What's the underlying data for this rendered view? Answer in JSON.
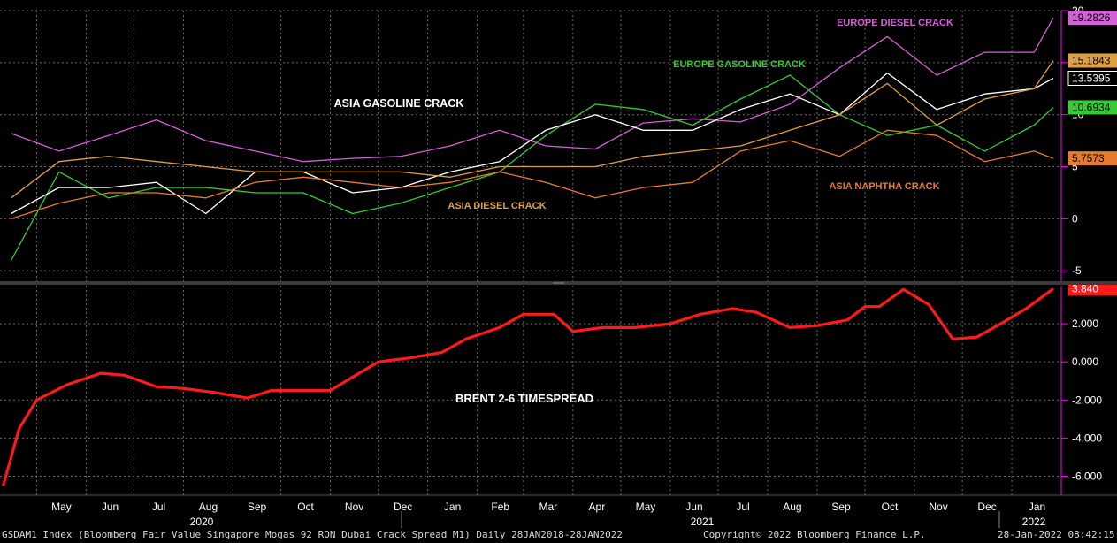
{
  "chart_data": [
    {
      "type": "line",
      "panel": "upper",
      "ylim": [
        -6,
        20
      ],
      "yticks": [
        -5,
        0,
        5,
        10,
        15,
        20
      ],
      "series": [
        {
          "name": "EUROPE DIESEL CRACK",
          "color": "#d45fd6",
          "last": "19.2826",
          "x": [
            "2019-04-15",
            "2019-05-15",
            "2019-06-15",
            "2019-07-15",
            "2019-08-15",
            "2019-09-15",
            "2019-10-15",
            "2019-11-15",
            "2019-12-15",
            "2020-01-15",
            "2020-02-15",
            "2020-03-15",
            "2020-04-15",
            "2020-05-15",
            "2020-06-15",
            "2020-07-15",
            "2020-08-15",
            "2020-09-15",
            "2020-10-15",
            "2020-11-15",
            "2020-12-15",
            "2021-01-15",
            "2021-01-27"
          ],
          "values": [
            8.2,
            6.5,
            8.0,
            9.5,
            7.5,
            6.5,
            5.5,
            5.8,
            6.0,
            7.0,
            8.5,
            7.0,
            6.7,
            9.2,
            9.6,
            9.3,
            11.0,
            14.5,
            17.5,
            13.8,
            16.0,
            16.0,
            19.3
          ]
        },
        {
          "name": "EUROPE GASOLINE CRACK",
          "color": "#33cc33",
          "last": "10.6934",
          "x": [
            "2019-04-15",
            "2019-05-15",
            "2019-06-15",
            "2019-07-15",
            "2019-08-15",
            "2019-09-15",
            "2019-10-15",
            "2019-11-15",
            "2019-12-15",
            "2020-01-15",
            "2020-02-15",
            "2020-03-15",
            "2020-04-15",
            "2020-05-15",
            "2020-06-15",
            "2020-07-15",
            "2020-08-15",
            "2020-09-15",
            "2020-10-15",
            "2020-11-15",
            "2020-12-15",
            "2021-01-15",
            "2021-01-27"
          ],
          "values": [
            -4.0,
            4.5,
            2.0,
            3.0,
            3.0,
            2.5,
            2.5,
            0.5,
            1.5,
            3.0,
            4.5,
            8.0,
            11.0,
            10.5,
            9.0,
            11.5,
            13.8,
            10.0,
            8.0,
            9.0,
            6.5,
            9.0,
            10.7
          ]
        },
        {
          "name": "ASIA GASOLINE CRACK",
          "color": "#ffffff",
          "last": "13.5395",
          "x": [
            "2019-04-15",
            "2019-05-15",
            "2019-06-15",
            "2019-07-15",
            "2019-08-15",
            "2019-09-15",
            "2019-10-15",
            "2019-11-15",
            "2019-12-15",
            "2020-01-15",
            "2020-02-15",
            "2020-03-15",
            "2020-04-15",
            "2020-05-15",
            "2020-06-15",
            "2020-07-15",
            "2020-08-15",
            "2020-09-15",
            "2020-10-15",
            "2020-11-15",
            "2020-12-15",
            "2021-01-15",
            "2021-01-27"
          ],
          "values": [
            0.5,
            3.0,
            3.0,
            3.5,
            0.5,
            4.5,
            4.5,
            2.5,
            3.0,
            4.5,
            5.5,
            8.5,
            10.0,
            8.5,
            8.5,
            10.5,
            12.0,
            10.0,
            14.0,
            10.5,
            12.0,
            12.5,
            13.5
          ]
        },
        {
          "name": "ASIA DIESEL CRACK",
          "color": "#e0a040",
          "last": "15.1843",
          "x": [
            "2019-04-15",
            "2019-05-15",
            "2019-06-15",
            "2019-07-15",
            "2019-08-15",
            "2019-09-15",
            "2019-10-15",
            "2019-11-15",
            "2019-12-15",
            "2020-01-15",
            "2020-02-15",
            "2020-03-15",
            "2020-04-15",
            "2020-05-15",
            "2020-06-15",
            "2020-07-15",
            "2020-08-15",
            "2020-09-15",
            "2020-10-15",
            "2020-11-15",
            "2020-12-15",
            "2021-01-15",
            "2021-01-27"
          ],
          "values": [
            2.0,
            5.5,
            6.0,
            5.5,
            5.0,
            4.5,
            4.5,
            4.5,
            4.5,
            4.0,
            5.0,
            5.0,
            5.0,
            6.0,
            6.5,
            7.0,
            8.5,
            10.0,
            13.0,
            9.0,
            11.5,
            12.5,
            15.2
          ]
        },
        {
          "name": "ASIA NAPHTHA CRACK",
          "color": "#e87a2e",
          "last": "5.7573",
          "x": [
            "2019-04-15",
            "2019-05-15",
            "2019-06-15",
            "2019-07-15",
            "2019-08-15",
            "2019-09-15",
            "2019-10-15",
            "2019-11-15",
            "2019-12-15",
            "2020-01-15",
            "2020-02-15",
            "2020-03-15",
            "2020-04-15",
            "2020-05-15",
            "2020-06-15",
            "2020-07-15",
            "2020-08-15",
            "2020-09-15",
            "2020-10-15",
            "2020-11-15",
            "2020-12-15",
            "2021-01-15",
            "2021-01-27"
          ],
          "values": [
            0.0,
            1.5,
            2.5,
            2.5,
            2.0,
            3.5,
            4.0,
            3.5,
            3.0,
            3.5,
            4.5,
            3.5,
            2.0,
            3.0,
            3.5,
            6.5,
            7.5,
            6.0,
            8.5,
            8.0,
            5.5,
            6.5,
            5.8
          ]
        }
      ],
      "annotations": [
        "EUROPE DIESEL CRACK",
        "EUROPE GASOLINE CRACK",
        "ASIA GASOLINE CRACK",
        "ASIA DIESEL CRACK",
        "ASIA NAPHTHA CRACK"
      ]
    },
    {
      "type": "line",
      "panel": "lower",
      "ylim": [
        -7,
        4
      ],
      "yticks": [
        "-6.000",
        "-4.000",
        "-2.000",
        "0.000",
        "2.000"
      ],
      "series": [
        {
          "name": "BRENT 2-6 TIMESPREAD",
          "color": "#ff1a1a",
          "last": "3.840",
          "x": [
            "2019-04-10",
            "2019-04-20",
            "2019-05-01",
            "2019-05-20",
            "2019-06-10",
            "2019-06-25",
            "2019-07-15",
            "2019-08-01",
            "2019-08-20",
            "2019-09-10",
            "2019-09-25",
            "2019-10-15",
            "2019-11-01",
            "2019-11-15",
            "2019-12-01",
            "2019-12-20",
            "2020-01-10",
            "2020-01-25",
            "2020-02-15",
            "2020-03-01",
            "2020-03-20",
            "2020-04-01",
            "2020-04-20",
            "2020-05-10",
            "2020-06-01",
            "2020-06-20",
            "2020-07-10",
            "2020-07-25",
            "2020-08-15",
            "2020-09-01",
            "2020-09-20",
            "2020-10-01",
            "2020-10-10",
            "2020-10-25",
            "2020-11-10",
            "2020-11-25",
            "2020-12-10",
            "2020-12-25",
            "2021-01-10",
            "2021-01-27"
          ],
          "values": [
            -6.5,
            -3.5,
            -2.0,
            -1.2,
            -0.6,
            -0.7,
            -1.3,
            -1.4,
            -1.6,
            -1.9,
            -1.5,
            -1.5,
            -1.5,
            -0.8,
            0.0,
            0.2,
            0.5,
            1.2,
            1.8,
            2.5,
            2.5,
            1.6,
            1.8,
            1.8,
            2.0,
            2.5,
            2.8,
            2.6,
            1.8,
            1.9,
            2.2,
            2.9,
            2.9,
            3.8,
            3.0,
            1.2,
            1.3,
            2.0,
            2.8,
            3.84
          ]
        }
      ],
      "annotations": [
        "BRENT 2-6 TIMESPREAD"
      ]
    }
  ],
  "x_axis": {
    "months": [
      "May",
      "Jun",
      "Jul",
      "Aug",
      "Sep",
      "Oct",
      "Nov",
      "Dec",
      "Jan",
      "Feb",
      "Mar",
      "Apr",
      "May",
      "Jun",
      "Jul",
      "Aug",
      "Sep",
      "Oct",
      "Nov",
      "Dec",
      "Jan"
    ],
    "month_dates": [
      "2019-05-01",
      "2019-06-01",
      "2019-07-01",
      "2019-08-01",
      "2019-09-01",
      "2019-10-01",
      "2019-11-01",
      "2019-12-01",
      "2020-01-01",
      "2020-02-01",
      "2020-03-01",
      "2020-04-01",
      "2020-05-01",
      "2020-06-01",
      "2020-07-01",
      "2020-08-01",
      "2020-09-01",
      "2020-10-01",
      "2020-11-01",
      "2020-12-01",
      "2021-01-01"
    ],
    "years": [
      "2020",
      "2021",
      "2022"
    ],
    "x_range": [
      "2019-04-08",
      "2021-02-01"
    ]
  },
  "footer": {
    "left": "GSDAM1 Index (Bloomberg Fair Value Singapore Mogas 92 RON Dubai Crack Spread M1)  Daily 28JAN2018-28JAN2022",
    "copyright": "Copyright© 2022 Bloomberg Finance L.P.",
    "timestamp": "28-Jan-2022 08:42:15"
  },
  "colors": {
    "background": "#000000",
    "grid": "#6a6a6a",
    "axis": "#ff00ff"
  }
}
